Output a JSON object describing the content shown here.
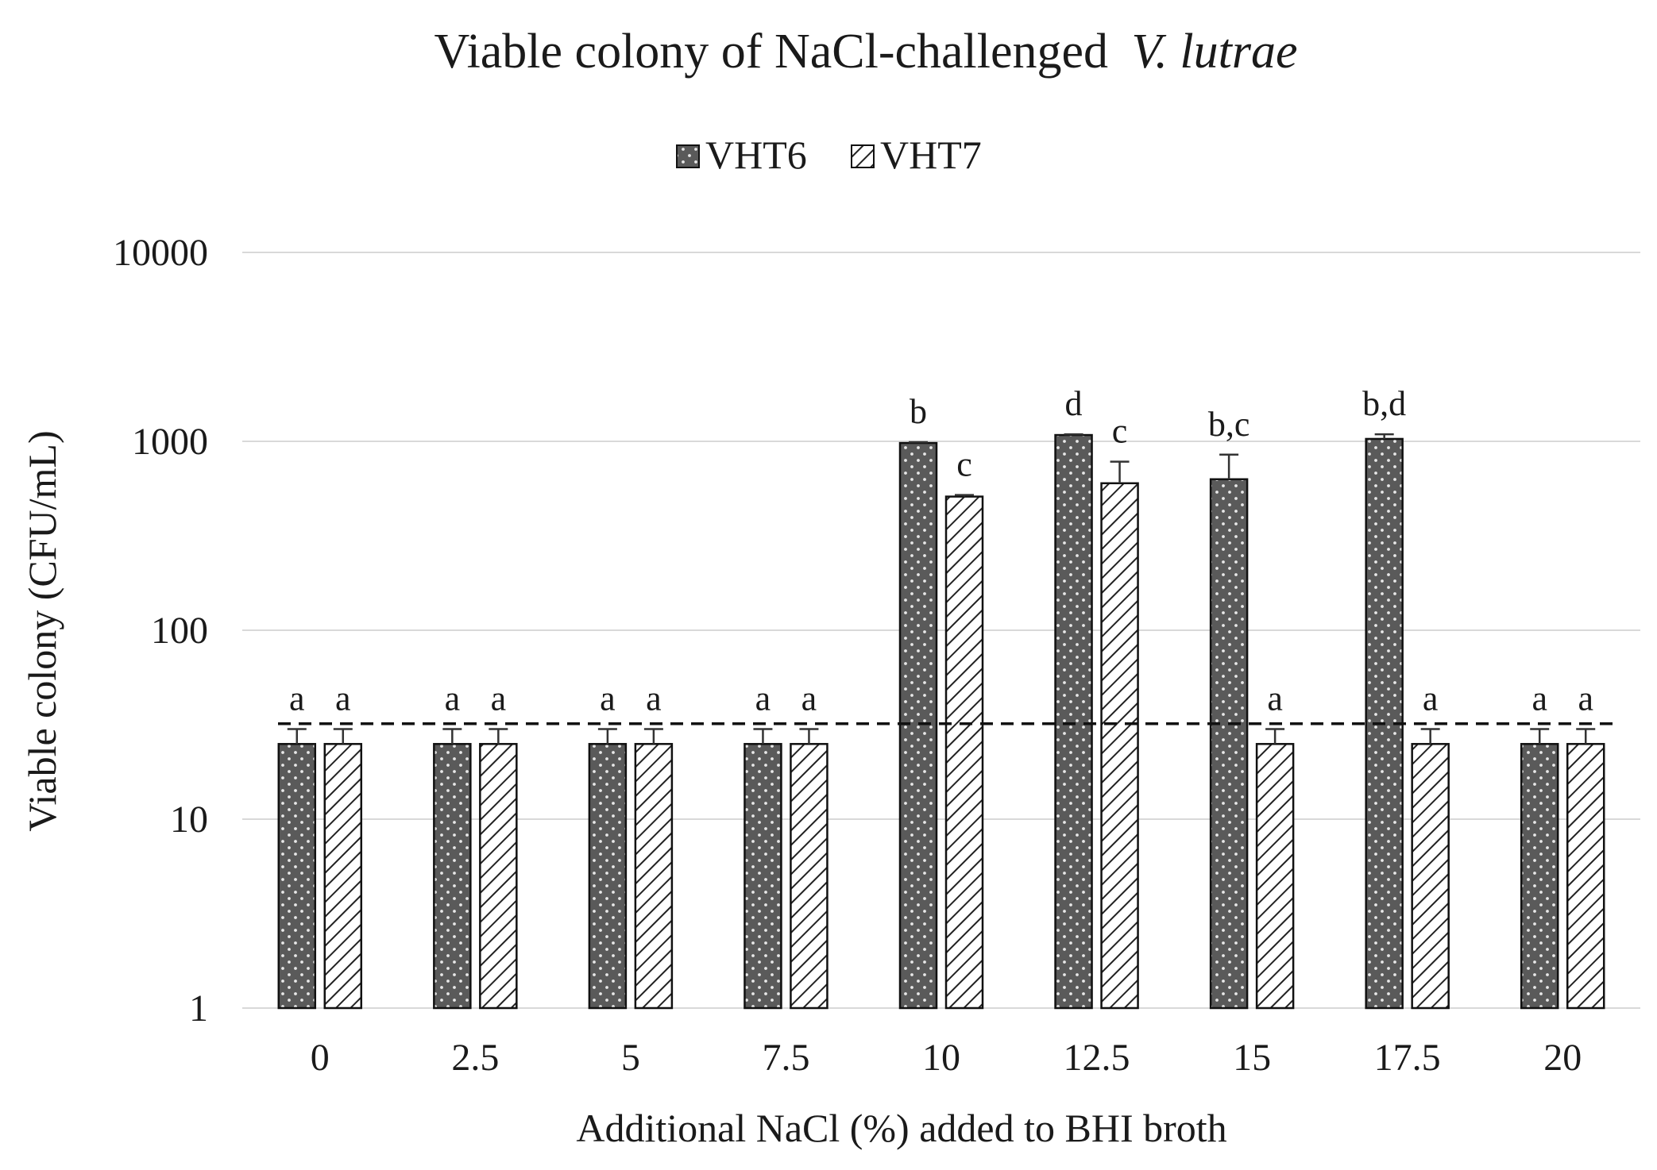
{
  "chart_data": {
    "type": "bar",
    "title": "Viable colony of NaCl-challenged",
    "title_italic": "V. lutrae",
    "xlabel": "Additional NaCl (%) added to BHI broth",
    "ylabel": "Viable colony (CFU/mL)",
    "yscale": "log",
    "ylim": [
      1,
      10000
    ],
    "yticks": [
      "1",
      "10",
      "100",
      "1000",
      "10000"
    ],
    "categories": [
      "0",
      "2.5",
      "5",
      "7.5",
      "10",
      "12.5",
      "15",
      "17.5",
      "20"
    ],
    "legend_position": "top-center",
    "grid": true,
    "series": [
      {
        "name": "VHT6",
        "pattern": "dots",
        "values": [
          25,
          25,
          25,
          25,
          980,
          1080,
          630,
          1030,
          25
        ],
        "error": [
          5,
          5,
          5,
          5,
          10,
          10,
          220,
          60,
          5
        ],
        "labels": [
          "a",
          "a",
          "a",
          "a",
          "b",
          "d",
          "b,c",
          "b,d",
          "a"
        ]
      },
      {
        "name": "VHT7",
        "pattern": "hatch",
        "values": [
          25,
          25,
          25,
          25,
          510,
          600,
          25,
          25,
          25
        ],
        "error": [
          5,
          5,
          5,
          5,
          10,
          180,
          5,
          5,
          5
        ],
        "labels": [
          "a",
          "a",
          "a",
          "a",
          "c",
          "c",
          "a",
          "a",
          "a"
        ]
      }
    ],
    "threshold_line": {
      "value": 32,
      "style": "dashed"
    },
    "colors": {
      "bar_fill_dots": "#5a5a5a",
      "dot": "#e8e8e8",
      "hatch_line": "#222222",
      "grid": "#d9d9d9"
    }
  }
}
